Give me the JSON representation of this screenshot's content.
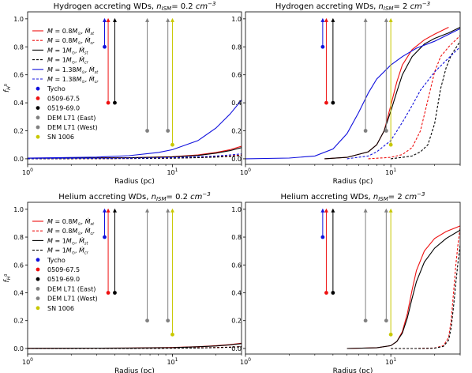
{
  "colors": {
    "tycho": "#1111dd",
    "kepler": "#ee1111",
    "black": "#000000",
    "dem": "#808080",
    "sn1006": "#c8c800",
    "m08": "#ee1111",
    "m10": "#000000",
    "m138": "#1111dd"
  },
  "chart_data": [
    {
      "type": "line",
      "title": "Hydrogen accreting WDs, n_ISM = 0.2 cm^-3",
      "title_parts": {
        "prefix": "Hydrogen accreting WDs, ",
        "sym": "n",
        "sub": "ISM",
        "value": "= 0.2 ",
        "unit": "cm",
        "exp": "−3"
      },
      "xlabel": "Radius (pc)",
      "ylabel": "f_H0",
      "xscale": "log",
      "xlim": [
        1,
        30
      ],
      "ylim": [
        -0.04,
        1.05
      ],
      "yticks": [
        "0.0",
        "0.2",
        "0.4",
        "0.6",
        "0.8",
        "1.0"
      ],
      "xticks": [
        {
          "v": 1,
          "base": "10",
          "exp": "0"
        },
        {
          "v": 10,
          "base": "10",
          "exp": "1"
        }
      ],
      "legend_position": "upper-left",
      "legend": [
        {
          "label": "M = 0.8M⊙, Ṁst",
          "kind": "line",
          "color": "#ee1111",
          "dash": false
        },
        {
          "label": "M = 0.8M⊙, Ṁcr",
          "kind": "line",
          "color": "#ee1111",
          "dash": true
        },
        {
          "label": "M = 1M⊙, Ṁst",
          "kind": "line",
          "color": "#000000",
          "dash": false
        },
        {
          "label": "M = 1M⊙, Ṁcr",
          "kind": "line",
          "color": "#000000",
          "dash": true
        },
        {
          "label": "M = 1.38M⊙, Ṁst",
          "kind": "line",
          "color": "#1111dd",
          "dash": false
        },
        {
          "label": "M = 1.38M⊙, Ṁcr",
          "kind": "line",
          "color": "#1111dd",
          "dash": true
        },
        {
          "label": "Tycho",
          "kind": "dot",
          "color": "#1111dd"
        },
        {
          "label": "0509-67.5",
          "kind": "dot",
          "color": "#ee1111"
        },
        {
          "label": "0519-69.0",
          "kind": "dot",
          "color": "#000000"
        },
        {
          "label": "DEM L71 (East)",
          "kind": "dot",
          "color": "#808080"
        },
        {
          "label": "DEM L71 (West)",
          "kind": "dot",
          "color": "#808080"
        },
        {
          "label": "SN 1006",
          "kind": "dot",
          "color": "#c8c800"
        }
      ],
      "series": [
        {
          "color": "#ee1111",
          "dash": false,
          "x": [
            1,
            5,
            10,
            15,
            20,
            25,
            30
          ],
          "y": [
            0.005,
            0.008,
            0.015,
            0.028,
            0.045,
            0.065,
            0.09
          ]
        },
        {
          "color": "#ee1111",
          "dash": true,
          "x": [
            1,
            5,
            10,
            15,
            20,
            25,
            30
          ],
          "y": [
            0.0,
            0.002,
            0.005,
            0.009,
            0.014,
            0.02,
            0.027
          ]
        },
        {
          "color": "#000000",
          "dash": false,
          "x": [
            1,
            5,
            10,
            15,
            20,
            25,
            30
          ],
          "y": [
            0.004,
            0.007,
            0.013,
            0.024,
            0.04,
            0.058,
            0.08
          ]
        },
        {
          "color": "#000000",
          "dash": true,
          "x": [
            1,
            5,
            10,
            15,
            20,
            25,
            30
          ],
          "y": [
            0.0,
            0.002,
            0.004,
            0.008,
            0.012,
            0.017,
            0.023
          ]
        },
        {
          "color": "#1111dd",
          "dash": false,
          "x": [
            1,
            3,
            5,
            8,
            10,
            15,
            20,
            25,
            30
          ],
          "y": [
            0.005,
            0.012,
            0.022,
            0.045,
            0.065,
            0.13,
            0.22,
            0.32,
            0.42
          ]
        },
        {
          "color": "#1111dd",
          "dash": true,
          "x": [
            1,
            5,
            10,
            15,
            20,
            25,
            30
          ],
          "y": [
            0.001,
            0.004,
            0.008,
            0.014,
            0.02,
            0.027,
            0.035
          ]
        }
      ],
      "points": [
        {
          "name": "Tycho",
          "color": "#1111dd",
          "x": 3.4,
          "y": 0.8
        },
        {
          "name": "0509-67.5",
          "color": "#ee1111",
          "x": 3.6,
          "y": 0.4
        },
        {
          "name": "0519-69.0",
          "color": "#000000",
          "x": 4.0,
          "y": 0.4
        },
        {
          "name": "DEM L71 (East)",
          "color": "#808080",
          "x": 6.7,
          "y": 0.2
        },
        {
          "name": "DEM L71 (West)",
          "color": "#808080",
          "x": 9.3,
          "y": 0.2
        },
        {
          "name": "SN 1006",
          "color": "#c8c800",
          "x": 10.0,
          "y": 0.1
        }
      ]
    },
    {
      "type": "line",
      "title": "Hydrogen accreting WDs, n_ISM = 2 cm^-3",
      "title_parts": {
        "prefix": "Hydrogen accreting WDs, ",
        "sym": "n",
        "sub": "ISM",
        "value": "= 2 ",
        "unit": "cm",
        "exp": "−3"
      },
      "xlabel": "Radius (pc)",
      "ylabel": "",
      "xscale": "log",
      "xlim": [
        1,
        30
      ],
      "ylim": [
        -0.04,
        1.05
      ],
      "yticks": [
        "0.0",
        "0.2",
        "0.4",
        "0.6",
        "0.8",
        "1.0"
      ],
      "xticks": [
        {
          "v": 1,
          "base": "10",
          "exp": "0"
        },
        {
          "v": 10,
          "base": "10",
          "exp": "1"
        }
      ],
      "legend": [],
      "series": [
        {
          "color": "#ee1111",
          "dash": false,
          "x": [
            3.5,
            5,
            7,
            8,
            9,
            10,
            11,
            12,
            14,
            17,
            20,
            25
          ],
          "y": [
            0.0,
            0.01,
            0.05,
            0.1,
            0.2,
            0.38,
            0.55,
            0.67,
            0.78,
            0.85,
            0.89,
            0.94
          ]
        },
        {
          "color": "#ee1111",
          "dash": true,
          "x": [
            7,
            10,
            12,
            14,
            16,
            18,
            20,
            22,
            25,
            30
          ],
          "y": [
            0.0,
            0.01,
            0.03,
            0.08,
            0.2,
            0.42,
            0.62,
            0.73,
            0.8,
            0.88
          ]
        },
        {
          "color": "#000000",
          "dash": false,
          "x": [
            3.5,
            5,
            7,
            8,
            9,
            10,
            11,
            12,
            14,
            17,
            20,
            25,
            30
          ],
          "y": [
            0.0,
            0.01,
            0.05,
            0.1,
            0.2,
            0.34,
            0.48,
            0.6,
            0.73,
            0.82,
            0.86,
            0.9,
            0.94
          ]
        },
        {
          "color": "#000000",
          "dash": true,
          "x": [
            10,
            12,
            14,
            16,
            18,
            20,
            22,
            24,
            26,
            30
          ],
          "y": [
            0.0,
            0.01,
            0.02,
            0.05,
            0.1,
            0.25,
            0.5,
            0.65,
            0.74,
            0.84
          ]
        },
        {
          "color": "#1111dd",
          "dash": false,
          "x": [
            1,
            2,
            3,
            4,
            5,
            6,
            7,
            8,
            10,
            12,
            15,
            20,
            30
          ],
          "y": [
            0.0,
            0.005,
            0.02,
            0.07,
            0.18,
            0.33,
            0.47,
            0.57,
            0.67,
            0.73,
            0.79,
            0.84,
            0.93
          ]
        },
        {
          "color": "#1111dd",
          "dash": true,
          "x": [
            5,
            7,
            8,
            10,
            12,
            14,
            16,
            20,
            25,
            30
          ],
          "y": [
            0.0,
            0.02,
            0.05,
            0.13,
            0.26,
            0.38,
            0.49,
            0.62,
            0.72,
            0.8
          ]
        }
      ],
      "points": [
        {
          "name": "Tycho",
          "color": "#1111dd",
          "x": 3.4,
          "y": 0.8
        },
        {
          "name": "0509-67.5",
          "color": "#ee1111",
          "x": 3.6,
          "y": 0.4
        },
        {
          "name": "0519-69.0",
          "color": "#000000",
          "x": 4.0,
          "y": 0.4
        },
        {
          "name": "DEM L71 (East)",
          "color": "#808080",
          "x": 6.7,
          "y": 0.2
        },
        {
          "name": "DEM L71 (West)",
          "color": "#808080",
          "x": 9.3,
          "y": 0.2
        },
        {
          "name": "SN 1006",
          "color": "#c8c800",
          "x": 10.0,
          "y": 0.1
        }
      ]
    },
    {
      "type": "line",
      "title": "Helium accreting WDs, n_ISM = 0.2 cm^-3",
      "title_parts": {
        "prefix": "Helium accreting WDs, ",
        "sym": "n",
        "sub": "ISM",
        "value": "= 0.2 ",
        "unit": "cm",
        "exp": "−3"
      },
      "xlabel": "Radius (pc)",
      "ylabel": "f_H0",
      "xscale": "log",
      "xlim": [
        1,
        30
      ],
      "ylim": [
        -0.04,
        1.05
      ],
      "yticks": [
        "0.0",
        "0.2",
        "0.4",
        "0.6",
        "0.8",
        "1.0"
      ],
      "xticks": [
        {
          "v": 1,
          "base": "10",
          "exp": "0"
        },
        {
          "v": 10,
          "base": "10",
          "exp": "1"
        }
      ],
      "legend_position": "upper-left",
      "legend": [
        {
          "label": "M = 0.8M⊙, Ṁst",
          "kind": "line",
          "color": "#ee1111",
          "dash": false
        },
        {
          "label": "M = 0.8M⊙, Ṁcr",
          "kind": "line",
          "color": "#ee1111",
          "dash": true
        },
        {
          "label": "M = 1M⊙, Ṁst",
          "kind": "line",
          "color": "#000000",
          "dash": false
        },
        {
          "label": "M = 1M⊙, Ṁcr",
          "kind": "line",
          "color": "#000000",
          "dash": true
        },
        {
          "label": "Tycho",
          "kind": "dot",
          "color": "#1111dd"
        },
        {
          "label": "0509-67.5",
          "kind": "dot",
          "color": "#ee1111"
        },
        {
          "label": "0519-69.0",
          "kind": "dot",
          "color": "#000000"
        },
        {
          "label": "DEM L71 (East)",
          "kind": "dot",
          "color": "#808080"
        },
        {
          "label": "DEM L71 (West)",
          "kind": "dot",
          "color": "#808080"
        },
        {
          "label": "SN 1006",
          "kind": "dot",
          "color": "#c8c800"
        }
      ],
      "series": [
        {
          "color": "#ee1111",
          "dash": false,
          "x": [
            1,
            5,
            10,
            15,
            20,
            25,
            30
          ],
          "y": [
            0.001,
            0.003,
            0.007,
            0.013,
            0.02,
            0.028,
            0.038
          ]
        },
        {
          "color": "#ee1111",
          "dash": true,
          "x": [
            1,
            5,
            10,
            15,
            20,
            25,
            30
          ],
          "y": [
            0.0,
            0.001,
            0.002,
            0.004,
            0.007,
            0.01,
            0.014
          ]
        },
        {
          "color": "#000000",
          "dash": false,
          "x": [
            1,
            5,
            10,
            15,
            20,
            25,
            30
          ],
          "y": [
            0.001,
            0.003,
            0.006,
            0.012,
            0.018,
            0.026,
            0.035
          ]
        },
        {
          "color": "#000000",
          "dash": true,
          "x": [
            1,
            5,
            10,
            15,
            20,
            25,
            30
          ],
          "y": [
            0.0,
            0.001,
            0.002,
            0.003,
            0.006,
            0.009,
            0.012
          ]
        }
      ],
      "points": [
        {
          "name": "Tycho",
          "color": "#1111dd",
          "x": 3.4,
          "y": 0.8
        },
        {
          "name": "0509-67.5",
          "color": "#ee1111",
          "x": 3.6,
          "y": 0.4
        },
        {
          "name": "0519-69.0",
          "color": "#000000",
          "x": 4.0,
          "y": 0.4
        },
        {
          "name": "DEM L71 (East)",
          "color": "#808080",
          "x": 6.7,
          "y": 0.2
        },
        {
          "name": "DEM L71 (West)",
          "color": "#808080",
          "x": 9.3,
          "y": 0.2
        },
        {
          "name": "SN 1006",
          "color": "#c8c800",
          "x": 10.0,
          "y": 0.1
        }
      ]
    },
    {
      "type": "line",
      "title": "Helium accreting WDs, n_ISM = 2 cm^-3",
      "title_parts": {
        "prefix": "Helium accreting WDs, ",
        "sym": "n",
        "sub": "ISM",
        "value": "= 2 ",
        "unit": "cm",
        "exp": "−3"
      },
      "xlabel": "Radius (pc)",
      "ylabel": "",
      "xscale": "log",
      "xlim": [
        1,
        30
      ],
      "ylim": [
        -0.04,
        1.05
      ],
      "yticks": [
        "0.0",
        "0.2",
        "0.4",
        "0.6",
        "0.8",
        "1.0"
      ],
      "xticks": [
        {
          "v": 1,
          "base": "10",
          "exp": "0"
        },
        {
          "v": 10,
          "base": "10",
          "exp": "1"
        }
      ],
      "legend": [],
      "series": [
        {
          "color": "#ee1111",
          "dash": false,
          "x": [
            5,
            8,
            10,
            11,
            12,
            13,
            14,
            15,
            17,
            20,
            24,
            30
          ],
          "y": [
            0.0,
            0.005,
            0.02,
            0.05,
            0.12,
            0.25,
            0.42,
            0.56,
            0.7,
            0.79,
            0.84,
            0.88
          ]
        },
        {
          "color": "#ee1111",
          "dash": true,
          "x": [
            10,
            15,
            20,
            23,
            25,
            26,
            27,
            28,
            29,
            30
          ],
          "y": [
            0.0,
            0.0,
            0.003,
            0.02,
            0.08,
            0.2,
            0.4,
            0.6,
            0.75,
            0.87
          ]
        },
        {
          "color": "#000000",
          "dash": false,
          "x": [
            5,
            8,
            10,
            11,
            12,
            13,
            14,
            15,
            17,
            20,
            24,
            30
          ],
          "y": [
            0.0,
            0.005,
            0.02,
            0.05,
            0.11,
            0.22,
            0.36,
            0.48,
            0.62,
            0.72,
            0.79,
            0.85
          ]
        },
        {
          "color": "#000000",
          "dash": true,
          "x": [
            10,
            15,
            20,
            23,
            25,
            26,
            27,
            28,
            29,
            30
          ],
          "y": [
            0.0,
            0.0,
            0.002,
            0.015,
            0.06,
            0.15,
            0.3,
            0.47,
            0.62,
            0.74
          ]
        }
      ],
      "points": [
        {
          "name": "Tycho",
          "color": "#1111dd",
          "x": 3.4,
          "y": 0.8
        },
        {
          "name": "0509-67.5",
          "color": "#ee1111",
          "x": 3.6,
          "y": 0.4
        },
        {
          "name": "0519-69.0",
          "color": "#000000",
          "x": 4.0,
          "y": 0.4
        },
        {
          "name": "DEM L71 (East)",
          "color": "#808080",
          "x": 6.7,
          "y": 0.2
        },
        {
          "name": "DEM L71 (West)",
          "color": "#808080",
          "x": 9.3,
          "y": 0.2
        },
        {
          "name": "SN 1006",
          "color": "#c8c800",
          "x": 10.0,
          "y": 0.1
        }
      ]
    }
  ]
}
